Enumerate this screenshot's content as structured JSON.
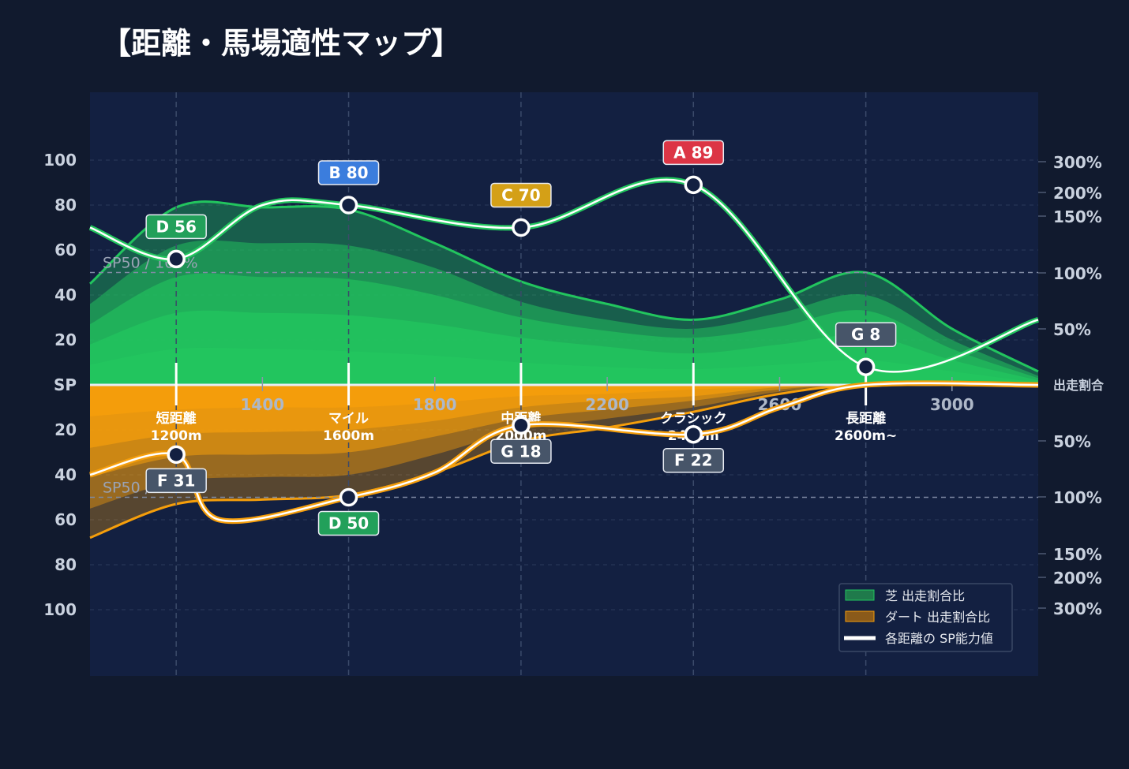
{
  "colors": {
    "background": "#111a2e",
    "plot_bg": "#132041",
    "turf": "#22c55e",
    "dirt": "#f59e0b",
    "sp_line": "#ffffff",
    "rank": {
      "A": "#dc3545",
      "B": "#3b7ddd",
      "C": "#d4a017",
      "D": "#22a05a",
      "F": "#475569",
      "G": "#475569"
    }
  },
  "chart_data": {
    "type": "area",
    "title": "【距離・馬場適性マップ】",
    "x_ticks": [
      1400,
      1800,
      2200,
      2600,
      3000
    ],
    "x_range": [
      1000,
      3200
    ],
    "left_axis": {
      "turf_ticks": [
        "100",
        "80",
        "60",
        "40",
        "20"
      ],
      "center_label": "SP",
      "dirt_ticks": [
        "20",
        "40",
        "60",
        "80",
        "100"
      ],
      "range": [
        0,
        100
      ]
    },
    "right_axis": {
      "center_label": "出走割合",
      "turf_ticks": [
        "300%",
        "200%",
        "150%",
        "100%",
        "50%"
      ],
      "dirt_ticks": [
        "50%",
        "100%",
        "150%",
        "200%",
        "300%"
      ]
    },
    "reference_lines": [
      {
        "label": "SP50 / 100%",
        "side": "turf",
        "value": 50
      },
      {
        "label": "SP50 / 100%",
        "side": "dirt",
        "value": 50
      }
    ],
    "categories": [
      {
        "label": "短距離",
        "sub": "1200m",
        "x": 1200
      },
      {
        "label": "マイル",
        "sub": "1600m",
        "x": 1600
      },
      {
        "label": "中距離",
        "sub": "2000m",
        "x": 2000
      },
      {
        "label": "クラシック",
        "sub": "2400m",
        "x": 2400
      },
      {
        "label": "長距離",
        "sub": "2600m~",
        "x": 2800
      }
    ],
    "turf_sp": {
      "curve": [
        [
          1000,
          70
        ],
        [
          1200,
          56
        ],
        [
          1400,
          80
        ],
        [
          1600,
          80
        ],
        [
          2000,
          70
        ],
        [
          2400,
          89
        ],
        [
          2800,
          8
        ],
        [
          3200,
          29
        ]
      ],
      "points": [
        {
          "x": 1200,
          "value": 56,
          "rank": "D",
          "label": "D 56",
          "badge": "above"
        },
        {
          "x": 1600,
          "value": 80,
          "rank": "B",
          "label": "B 80",
          "badge": "above"
        },
        {
          "x": 2000,
          "value": 70,
          "rank": "C",
          "label": "C 70",
          "badge": "above"
        },
        {
          "x": 2400,
          "value": 89,
          "rank": "A",
          "label": "A 89",
          "badge": "above"
        },
        {
          "x": 2800,
          "value": 8,
          "rank": "G",
          "label": "G 8",
          "badge": "above"
        }
      ]
    },
    "dirt_sp": {
      "curve": [
        [
          1000,
          40
        ],
        [
          1200,
          31
        ],
        [
          1300,
          60
        ],
        [
          1600,
          50
        ],
        [
          1800,
          39
        ],
        [
          2000,
          18
        ],
        [
          2400,
          22
        ],
        [
          2600,
          10
        ],
        [
          2800,
          0
        ],
        [
          3200,
          0
        ]
      ],
      "points": [
        {
          "x": 1200,
          "value": 31,
          "rank": "F",
          "label": "F 31",
          "badge": "below"
        },
        {
          "x": 1600,
          "value": 50,
          "rank": "D",
          "label": "D 50",
          "badge": "below"
        },
        {
          "x": 2000,
          "value": 18,
          "rank": "G",
          "label": "G 18",
          "badge": "below"
        },
        {
          "x": 2400,
          "value": 22,
          "rank": "F",
          "label": "F 22",
          "badge": "below"
        }
      ]
    },
    "turf_ratio_layers": [
      [
        [
          1000,
          45
        ],
        [
          1200,
          79
        ],
        [
          1400,
          79
        ],
        [
          1600,
          78
        ],
        [
          1800,
          63
        ],
        [
          2000,
          46
        ],
        [
          2200,
          36
        ],
        [
          2400,
          29
        ],
        [
          2600,
          38
        ],
        [
          2800,
          50
        ],
        [
          3000,
          25
        ],
        [
          3200,
          6
        ]
      ],
      [
        [
          1000,
          36
        ],
        [
          1200,
          62
        ],
        [
          1400,
          63
        ],
        [
          1600,
          62
        ],
        [
          1800,
          52
        ],
        [
          2000,
          37
        ],
        [
          2200,
          29
        ],
        [
          2400,
          25
        ],
        [
          2600,
          32
        ],
        [
          2800,
          40
        ],
        [
          3000,
          20
        ],
        [
          3200,
          4
        ]
      ],
      [
        [
          1000,
          27
        ],
        [
          1200,
          48
        ],
        [
          1400,
          48
        ],
        [
          1600,
          47
        ],
        [
          1800,
          40
        ],
        [
          2000,
          30
        ],
        [
          2200,
          24
        ],
        [
          2400,
          21
        ],
        [
          2600,
          26
        ],
        [
          2800,
          33
        ],
        [
          3000,
          16
        ],
        [
          3200,
          3
        ]
      ],
      [
        [
          1000,
          18
        ],
        [
          1200,
          32
        ],
        [
          1400,
          32
        ],
        [
          1600,
          31
        ],
        [
          1800,
          27
        ],
        [
          2000,
          21
        ],
        [
          2200,
          17
        ],
        [
          2400,
          14
        ],
        [
          2600,
          18
        ],
        [
          2800,
          22
        ],
        [
          3000,
          11
        ],
        [
          3200,
          2
        ]
      ],
      [
        [
          1000,
          9
        ],
        [
          1200,
          16
        ],
        [
          1400,
          16
        ],
        [
          1600,
          15
        ],
        [
          1800,
          13
        ],
        [
          2000,
          10
        ],
        [
          2200,
          8
        ],
        [
          2400,
          7
        ],
        [
          2600,
          9
        ],
        [
          2800,
          11
        ],
        [
          3000,
          6
        ],
        [
          3200,
          1
        ]
      ]
    ],
    "dirt_ratio_layers": [
      [
        [
          1000,
          68
        ],
        [
          1200,
          53
        ],
        [
          1400,
          51
        ],
        [
          1600,
          49
        ],
        [
          1800,
          39
        ],
        [
          2000,
          25
        ],
        [
          2200,
          19
        ],
        [
          2400,
          12
        ],
        [
          2600,
          4
        ],
        [
          2800,
          0
        ],
        [
          3200,
          0
        ]
      ],
      [
        [
          1000,
          55
        ],
        [
          1200,
          43
        ],
        [
          1400,
          41
        ],
        [
          1600,
          40
        ],
        [
          1800,
          31
        ],
        [
          2000,
          20
        ],
        [
          2200,
          15
        ],
        [
          2400,
          10
        ],
        [
          2600,
          3
        ],
        [
          2800,
          0
        ],
        [
          3200,
          0
        ]
      ],
      [
        [
          1000,
          41
        ],
        [
          1200,
          32
        ],
        [
          1400,
          31
        ],
        [
          1600,
          30
        ],
        [
          1800,
          23
        ],
        [
          2000,
          15
        ],
        [
          2200,
          11
        ],
        [
          2400,
          7
        ],
        [
          2600,
          2
        ],
        [
          2800,
          0
        ],
        [
          3200,
          0
        ]
      ],
      [
        [
          1000,
          28
        ],
        [
          1200,
          22
        ],
        [
          1400,
          21
        ],
        [
          1600,
          20
        ],
        [
          1800,
          16
        ],
        [
          2000,
          10
        ],
        [
          2200,
          7
        ],
        [
          2400,
          5
        ],
        [
          2600,
          1
        ],
        [
          2800,
          0
        ],
        [
          3200,
          0
        ]
      ],
      [
        [
          1000,
          14
        ],
        [
          1200,
          11
        ],
        [
          1400,
          10
        ],
        [
          1600,
          10
        ],
        [
          1800,
          8
        ],
        [
          2000,
          5
        ],
        [
          2200,
          4
        ],
        [
          2400,
          2
        ],
        [
          2600,
          1
        ],
        [
          2800,
          0
        ],
        [
          3200,
          0
        ]
      ]
    ],
    "legend": {
      "placement": "bottom-right",
      "items": [
        {
          "label": "芝 出走割合比",
          "swatch": "turf"
        },
        {
          "label": "ダート 出走割合比",
          "swatch": "dirt"
        },
        {
          "label": "各距離の SP能力値",
          "swatch": "line"
        }
      ]
    }
  }
}
